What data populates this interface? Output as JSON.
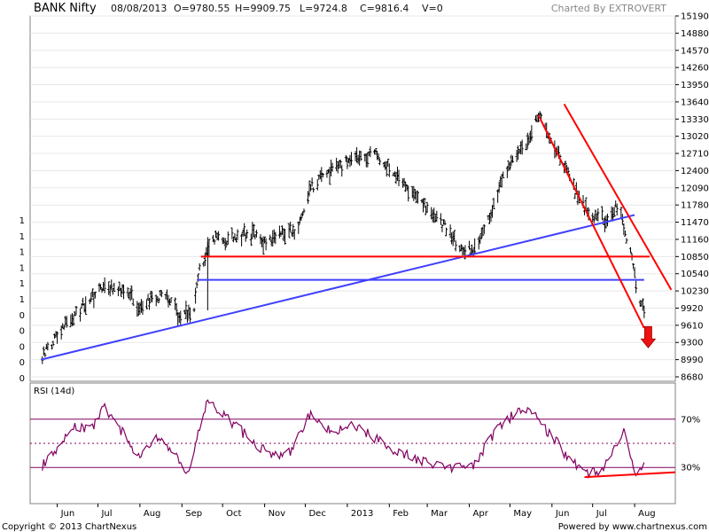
{
  "header": {
    "symbol": "BANK Nifty",
    "date": "08/08/2013",
    "open": "O=9780.55",
    "high": "H=9909.75",
    "low": "L=9724.8",
    "close": "C=9816.4",
    "volume": "V=0",
    "brand": "Charted By EXTROVERT"
  },
  "footer": {
    "copyright": "Copyright © 2013 ChartNexus",
    "powered": "Powered by www.chartnexus.com"
  },
  "colors": {
    "price": "#000000",
    "support_red": "#ff0000",
    "trend_blue": "#4040ff",
    "rsi": "#800060",
    "rsi_levels": "#800060",
    "grid": "#e8e8e8",
    "arrow": "#ee1111"
  },
  "chart_data": [
    {
      "type": "candlestick",
      "y_scale": "linear",
      "ylim": [
        8600,
        15190
      ],
      "y_ticks": [
        "15190",
        "14880",
        "14570",
        "14260",
        "13950",
        "13640",
        "13330",
        "13020",
        "12710",
        "12400",
        "12090",
        "11780",
        "11470",
        "11160",
        "10850",
        "10540",
        "10230",
        "9920",
        "9610",
        "9300",
        "8990",
        "8680"
      ],
      "left_axis_labels": [
        "1",
        "1",
        "1",
        "1",
        "1",
        "1",
        "0",
        "0",
        "0",
        "0",
        "0"
      ],
      "x_ticks": [
        "Jun",
        "Jul",
        "Aug",
        "Sep",
        "Oct",
        "Nov",
        "Dec",
        "2013",
        "Feb",
        "Mar",
        "Apr",
        "May",
        "Jun",
        "Jul",
        "Aug"
      ],
      "price_path": [
        [
          "2012-05-20",
          9000
        ],
        [
          "2012-05-28",
          9300
        ],
        [
          "2012-06-10",
          9700
        ],
        [
          "2012-06-25",
          10050
        ],
        [
          "2012-07-05",
          10350
        ],
        [
          "2012-07-20",
          10250
        ],
        [
          "2012-07-31",
          9950
        ],
        [
          "2012-08-10",
          10100
        ],
        [
          "2012-08-20",
          10150
        ],
        [
          "2012-08-31",
          9750
        ],
        [
          "2012-09-10",
          9900
        ],
        [
          "2012-09-14",
          10600
        ],
        [
          "2012-09-25",
          11200
        ],
        [
          "2012-10-05",
          11150
        ],
        [
          "2012-10-20",
          11300
        ],
        [
          "2012-10-31",
          11100
        ],
        [
          "2012-11-10",
          11200
        ],
        [
          "2012-11-25",
          11350
        ],
        [
          "2012-12-05",
          12100
        ],
        [
          "2012-12-20",
          12400
        ],
        [
          "2013-01-05",
          12600
        ],
        [
          "2013-01-20",
          12700
        ],
        [
          "2013-01-31",
          12450
        ],
        [
          "2013-02-10",
          12200
        ],
        [
          "2013-02-25",
          11800
        ],
        [
          "2013-03-10",
          11500
        ],
        [
          "2013-03-25",
          11000
        ],
        [
          "2013-04-05",
          10950
        ],
        [
          "2013-04-15",
          11500
        ],
        [
          "2013-04-25",
          12200
        ],
        [
          "2013-05-05",
          12700
        ],
        [
          "2013-05-15",
          12900
        ],
        [
          "2013-05-22",
          13400
        ],
        [
          "2013-05-31",
          13000
        ],
        [
          "2013-06-10",
          12500
        ],
        [
          "2013-06-20",
          11900
        ],
        [
          "2013-06-30",
          11600
        ],
        [
          "2013-07-10",
          11500
        ],
        [
          "2013-07-20",
          11800
        ],
        [
          "2013-07-31",
          10700
        ],
        [
          "2013-08-03",
          10150
        ],
        [
          "2013-08-08",
          9816
        ]
      ],
      "lines": [
        {
          "name": "",
          "color": "#4040ff",
          "from": [
            "2012-05-20",
            8990
          ],
          "to": [
            "2013-08-01",
            11600
          ]
        },
        {
          "name": "",
          "color": "#ff0000",
          "from": [
            "2012-09-15",
            10850
          ],
          "to": [
            "2013-08-12",
            10850
          ]
        },
        {
          "name": "",
          "color": "#4040ff",
          "from": [
            "2012-09-12",
            10430
          ],
          "to": [
            "2013-08-08",
            10430
          ]
        },
        {
          "name": "",
          "color": "#ff0000",
          "from": [
            "2013-05-22",
            13400
          ],
          "to": [
            "2013-08-08",
            9560
          ]
        },
        {
          "name": "",
          "color": "#ff0000",
          "from": [
            "2013-06-10",
            13600
          ],
          "to": [
            "2013-08-28",
            10250
          ]
        }
      ],
      "arrow": {
        "direction": "down",
        "at": [
          "2013-08-11",
          9300
        ]
      }
    },
    {
      "type": "line",
      "title": "RSI (14d)",
      "ylim": [
        0,
        100
      ],
      "levels": [
        70,
        50,
        30
      ],
      "y_ticks": [
        "70%",
        "30%"
      ],
      "rsi_path": [
        [
          "2012-05-20",
          30
        ],
        [
          "2012-06-01",
          45
        ],
        [
          "2012-06-15",
          65
        ],
        [
          "2012-06-25",
          60
        ],
        [
          "2012-07-05",
          80
        ],
        [
          "2012-07-20",
          58
        ],
        [
          "2012-08-01",
          38
        ],
        [
          "2012-08-15",
          55
        ],
        [
          "2012-08-30",
          35
        ],
        [
          "2012-09-05",
          25
        ],
        [
          "2012-09-20",
          85
        ],
        [
          "2012-10-05",
          70
        ],
        [
          "2012-10-20",
          55
        ],
        [
          "2012-11-05",
          40
        ],
        [
          "2012-11-20",
          42
        ],
        [
          "2012-12-05",
          75
        ],
        [
          "2012-12-20",
          60
        ],
        [
          "2013-01-05",
          65
        ],
        [
          "2013-01-20",
          55
        ],
        [
          "2013-02-05",
          45
        ],
        [
          "2013-02-25",
          35
        ],
        [
          "2013-03-15",
          30
        ],
        [
          "2013-04-05",
          33
        ],
        [
          "2013-04-20",
          60
        ],
        [
          "2013-05-05",
          75
        ],
        [
          "2013-05-15",
          78
        ],
        [
          "2013-05-25",
          65
        ],
        [
          "2013-06-05",
          50
        ],
        [
          "2013-06-15",
          35
        ],
        [
          "2013-06-25",
          26
        ],
        [
          "2013-07-05",
          26
        ],
        [
          "2013-07-15",
          40
        ],
        [
          "2013-07-25",
          60
        ],
        [
          "2013-08-01",
          24
        ],
        [
          "2013-08-08",
          30
        ]
      ],
      "divergence_line": {
        "from": [
          "2013-06-25",
          22
        ],
        "to": [
          "2013-08-31",
          26
        ]
      }
    }
  ]
}
